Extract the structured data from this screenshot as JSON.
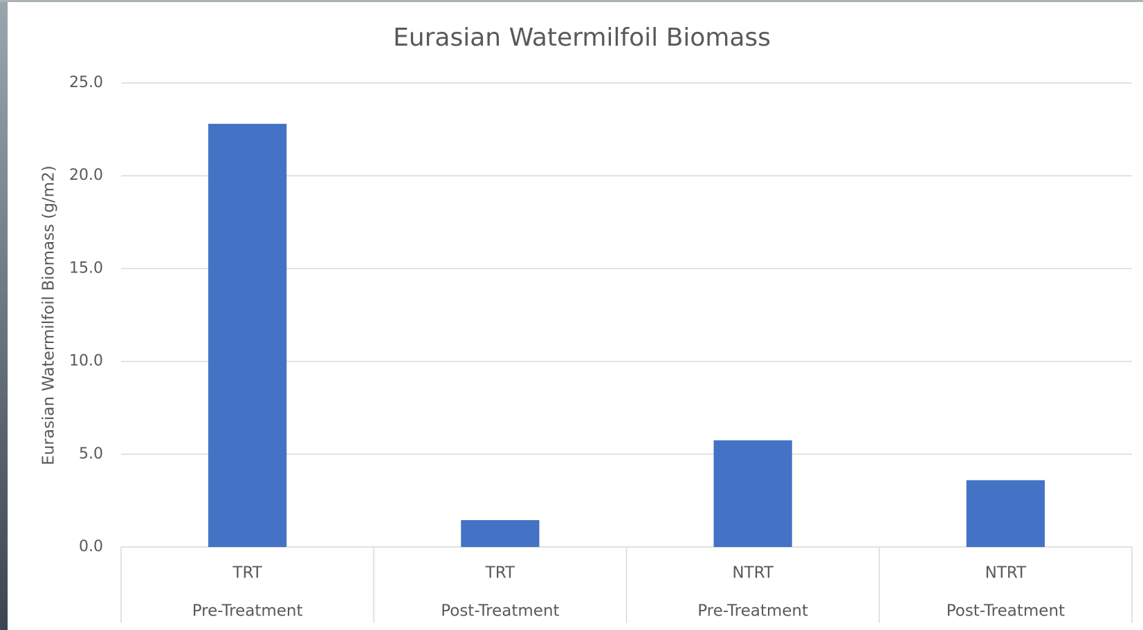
{
  "chart_data": {
    "type": "bar",
    "title": "Eurasian Watermilfoil Biomass",
    "y_label": "Eurasian Watermilfoil Biomass (g/m2)",
    "groups": [
      "TRT",
      "TRT",
      "NTRT",
      "NTRT"
    ],
    "categories": [
      "Pre-Treatment",
      "Post-Treatment",
      "Pre-Treatment",
      "Post-Treatment"
    ],
    "values": [
      22.8,
      1.45,
      5.75,
      3.6
    ],
    "color": "#4472c4",
    "ylim": [
      0,
      25
    ],
    "yticks": [
      {
        "value": 0,
        "label": "0.0"
      },
      {
        "value": 5,
        "label": "5.0"
      },
      {
        "value": 10,
        "label": "10.0"
      },
      {
        "value": 15,
        "label": "15.0"
      },
      {
        "value": 20,
        "label": "20.0"
      },
      {
        "value": 25,
        "label": "25.0"
      }
    ],
    "grid": true
  }
}
